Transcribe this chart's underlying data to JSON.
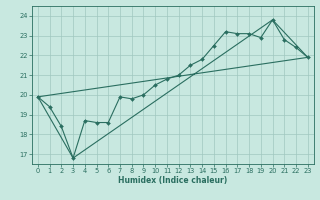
{
  "title": "",
  "xlabel": "Humidex (Indice chaleur)",
  "bg_color": "#c8e8e0",
  "grid_color": "#a0c8c0",
  "line_color": "#2a6e60",
  "xlim": [
    -0.5,
    23.5
  ],
  "ylim": [
    16.5,
    24.5
  ],
  "xticks": [
    0,
    1,
    2,
    3,
    4,
    5,
    6,
    7,
    8,
    9,
    10,
    11,
    12,
    13,
    14,
    15,
    16,
    17,
    18,
    19,
    20,
    21,
    22,
    23
  ],
  "yticks": [
    17,
    18,
    19,
    20,
    21,
    22,
    23,
    24
  ],
  "curve_x": [
    0,
    1,
    2,
    3,
    4,
    5,
    6,
    7,
    8,
    9,
    10,
    11,
    12,
    13,
    14,
    15,
    16,
    17,
    18,
    19,
    20,
    21,
    22,
    23
  ],
  "curve_y": [
    19.9,
    19.4,
    18.4,
    16.8,
    18.7,
    18.6,
    18.6,
    19.9,
    19.8,
    20.0,
    20.5,
    20.8,
    21.0,
    21.5,
    21.8,
    22.5,
    23.2,
    23.1,
    23.1,
    22.9,
    23.8,
    22.8,
    22.4,
    21.9
  ],
  "env_x": [
    0,
    3,
    20,
    23,
    0
  ],
  "env_y": [
    19.9,
    16.8,
    23.8,
    21.9,
    19.9
  ],
  "xlabel_fontsize": 5.5,
  "tick_fontsize": 4.8,
  "linewidth": 0.8,
  "markersize": 2.0
}
